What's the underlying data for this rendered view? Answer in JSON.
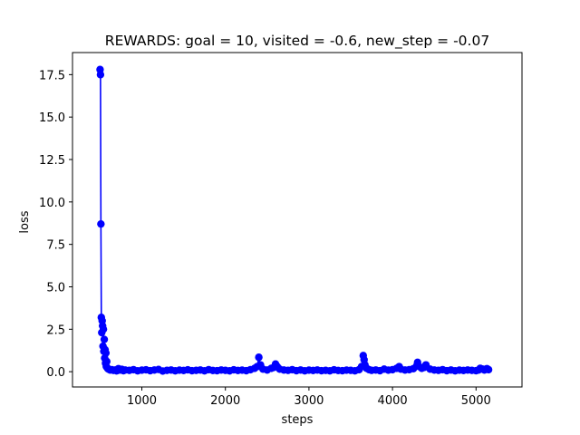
{
  "chart_data": {
    "type": "line",
    "title": "REWARDS: goal = 10, visited = -0.6, new_step = -0.07",
    "xlabel": "steps",
    "ylabel": "loss",
    "xlim": [
      170,
      5550
    ],
    "ylim": [
      -0.9,
      18.8
    ],
    "xticks": [
      1000,
      2000,
      3000,
      4000,
      5000
    ],
    "xtick_labels": [
      "1000",
      "2000",
      "3000",
      "4000",
      "5000"
    ],
    "yticks": [
      0.0,
      2.5,
      5.0,
      7.5,
      10.0,
      12.5,
      15.0,
      17.5
    ],
    "ytick_labels": [
      "0.0",
      "2.5",
      "5.0",
      "7.5",
      "10.0",
      "12.5",
      "15.0",
      "17.5"
    ],
    "grid": false,
    "marker": "circle",
    "series_color": "#0000ff",
    "series": [
      {
        "x": [
          500,
          505,
          510,
          515,
          520,
          525,
          530,
          535,
          540,
          545,
          550,
          555,
          560,
          565,
          570,
          575,
          580,
          590,
          600,
          620,
          640,
          660,
          680,
          700,
          720,
          740,
          760,
          780,
          800,
          850,
          900,
          950,
          1000,
          1050,
          1100,
          1150,
          1200,
          1250,
          1300,
          1350,
          1400,
          1450,
          1500,
          1550,
          1600,
          1650,
          1700,
          1750,
          1800,
          1850,
          1900,
          1950,
          2000,
          2050,
          2100,
          2150,
          2200,
          2250,
          2300,
          2350,
          2380,
          2400,
          2420,
          2450,
          2500,
          2550,
          2580,
          2600,
          2620,
          2650,
          2700,
          2750,
          2800,
          2850,
          2900,
          2950,
          3000,
          3050,
          3100,
          3150,
          3200,
          3250,
          3300,
          3350,
          3400,
          3450,
          3500,
          3550,
          3600,
          3630,
          3650,
          3660,
          3670,
          3690,
          3720,
          3750,
          3800,
          3850,
          3900,
          3950,
          4000,
          4050,
          4080,
          4100,
          4150,
          4200,
          4250,
          4290,
          4300,
          4320,
          4350,
          4380,
          4400,
          4450,
          4500,
          4550,
          4600,
          4650,
          4700,
          4750,
          4800,
          4850,
          4900,
          4950,
          5000,
          5030,
          5050,
          5080,
          5100,
          5130,
          5150
        ],
        "y": [
          17.8,
          17.5,
          8.7,
          3.2,
          2.3,
          3.0,
          2.7,
          1.5,
          2.5,
          1.2,
          1.9,
          0.8,
          1.3,
          0.5,
          1.1,
          0.3,
          0.6,
          0.2,
          0.15,
          0.1,
          0.12,
          0.08,
          0.1,
          0.05,
          0.18,
          0.1,
          0.14,
          0.06,
          0.1,
          0.08,
          0.12,
          0.05,
          0.09,
          0.11,
          0.06,
          0.1,
          0.13,
          0.04,
          0.08,
          0.1,
          0.05,
          0.09,
          0.07,
          0.11,
          0.06,
          0.08,
          0.1,
          0.05,
          0.12,
          0.07,
          0.06,
          0.1,
          0.08,
          0.05,
          0.11,
          0.07,
          0.09,
          0.06,
          0.12,
          0.2,
          0.3,
          0.85,
          0.4,
          0.15,
          0.1,
          0.2,
          0.25,
          0.45,
          0.3,
          0.15,
          0.1,
          0.08,
          0.12,
          0.06,
          0.1,
          0.05,
          0.09,
          0.07,
          0.1,
          0.06,
          0.08,
          0.05,
          0.11,
          0.07,
          0.06,
          0.09,
          0.08,
          0.05,
          0.12,
          0.3,
          0.95,
          0.7,
          0.4,
          0.2,
          0.12,
          0.08,
          0.1,
          0.06,
          0.15,
          0.09,
          0.12,
          0.2,
          0.3,
          0.15,
          0.1,
          0.12,
          0.18,
          0.35,
          0.55,
          0.3,
          0.2,
          0.25,
          0.4,
          0.15,
          0.1,
          0.08,
          0.12,
          0.06,
          0.1,
          0.05,
          0.09,
          0.07,
          0.1,
          0.08,
          0.06,
          0.1,
          0.2,
          0.15,
          0.1,
          0.18,
          0.12
        ]
      }
    ]
  }
}
